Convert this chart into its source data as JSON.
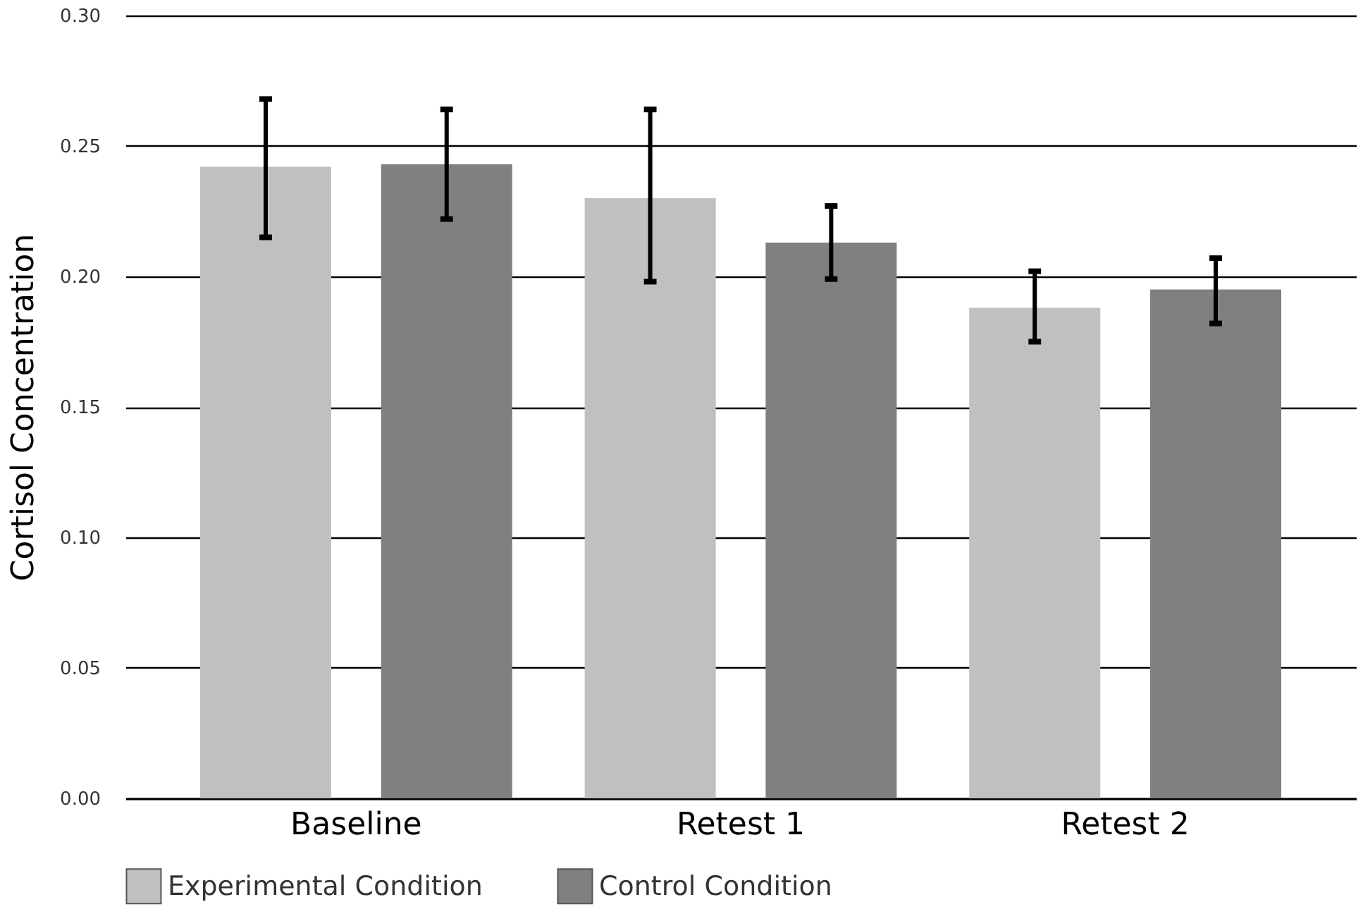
{
  "chart_data": {
    "type": "bar",
    "ylabel": "Cortisol Concentration",
    "categories": [
      "Baseline",
      "Retest 1",
      "Retest 2"
    ],
    "series": [
      {
        "name": "Experimental Condition",
        "color": "#c0c0c0",
        "values": [
          0.242,
          0.23,
          0.188
        ],
        "errors": [
          [
            0.215,
            0.268
          ],
          [
            0.198,
            0.264
          ],
          [
            0.175,
            0.202
          ]
        ]
      },
      {
        "name": "Control Condition",
        "color": "#808080",
        "values": [
          0.243,
          0.213,
          0.195
        ],
        "errors": [
          [
            0.222,
            0.264
          ],
          [
            0.199,
            0.227
          ],
          [
            0.182,
            0.207
          ]
        ]
      }
    ],
    "ylim": [
      0,
      0.3
    ],
    "yticks": [
      {
        "value": 0,
        "label": "0.00"
      },
      {
        "value": 0.05,
        "label": "0.05"
      },
      {
        "value": 0.1,
        "label": "0.10"
      },
      {
        "value": 0.15,
        "label": "0.15"
      },
      {
        "value": 0.2,
        "label": "0.20"
      },
      {
        "value": 0.25,
        "label": "0.25"
      },
      {
        "value": 0.3,
        "label": "0.30"
      }
    ],
    "grid": "y",
    "legend": "bottom"
  }
}
